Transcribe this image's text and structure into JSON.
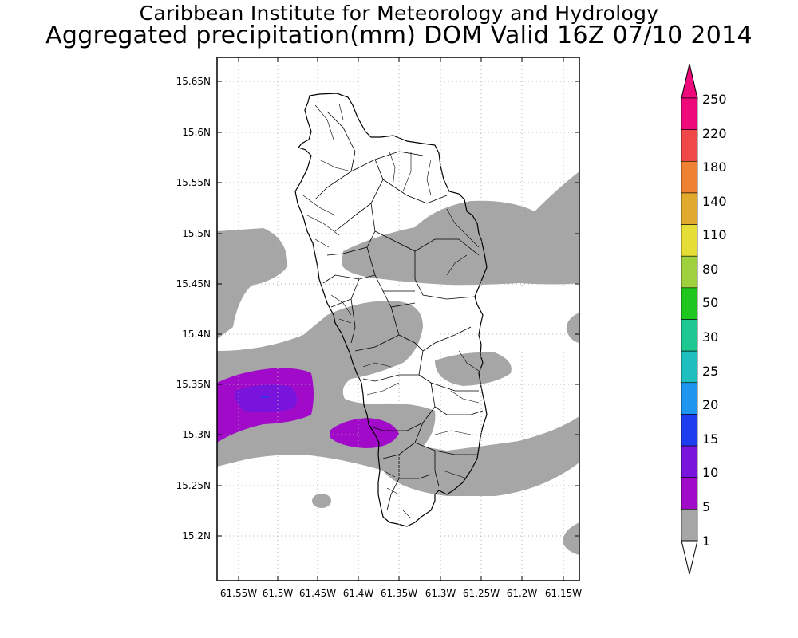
{
  "header": {
    "title": "Caribbean Institute for Meteorology and Hydrology",
    "subtitle": "Aggregated precipitation(mm) DOM Valid 16Z 07/10 2014"
  },
  "map": {
    "lat_labels": [
      "15.65N",
      "15.6N",
      "15.55N",
      "15.5N",
      "15.45N",
      "15.4N",
      "15.35N",
      "15.3N",
      "15.25N",
      "15.2N"
    ],
    "lon_labels": [
      "61.55W",
      "61.5W",
      "61.45W",
      "61.4W",
      "61.35W",
      "61.3W",
      "61.25W",
      "61.2W",
      "61.15W"
    ],
    "grid": true
  },
  "colorbar": {
    "labels": [
      "250",
      "220",
      "180",
      "140",
      "110",
      "80",
      "50",
      "30",
      "25",
      "20",
      "15",
      "10",
      "5",
      "1"
    ],
    "colors": [
      "#ee0a7a",
      "#f04848",
      "#ef8232",
      "#e1aa2e",
      "#e6de36",
      "#9fd13e",
      "#1ec61e",
      "#1fc890",
      "#1fbfbf",
      "#1e96f0",
      "#1e3cf0",
      "#7814dc",
      "#a00ac8",
      "#a6a6a6"
    ],
    "low_color": "#ffffff"
  },
  "colors": {
    "light_rain": "#a6a6a6",
    "moderate_rain": "#a00ac8",
    "heavier_rain": "#7814dc"
  }
}
